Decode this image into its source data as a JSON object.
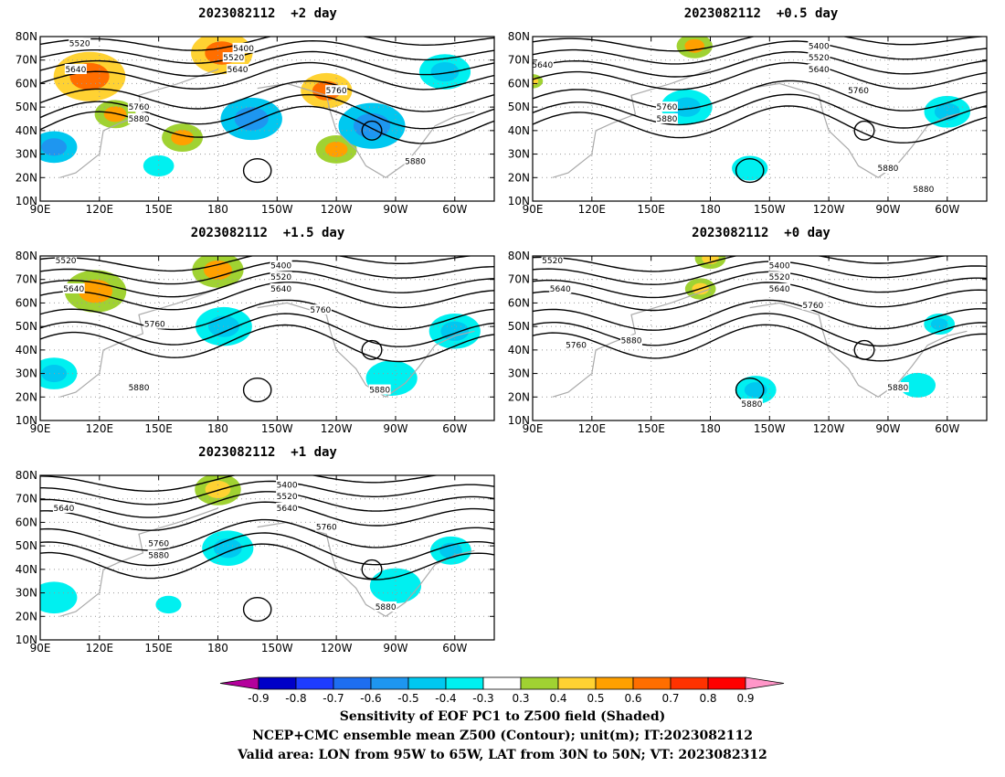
{
  "lon_ticks": [
    "90E",
    "120E",
    "150E",
    "180",
    "150W",
    "120W",
    "90W",
    "60W"
  ],
  "lat_ticks": [
    "80N",
    "70N",
    "60N",
    "50N",
    "40N",
    "30N",
    "20N",
    "10N"
  ],
  "panels": [
    {
      "id": "p2",
      "title": "2023082112  +2 day",
      "contour_labels": [
        {
          "t": "5520",
          "lon": 110,
          "lat": 77
        },
        {
          "t": "5400",
          "lon": 193,
          "lat": 75
        },
        {
          "t": "5520",
          "lon": 188,
          "lat": 71
        },
        {
          "t": "5640",
          "lon": 108,
          "lat": 66
        },
        {
          "t": "5640",
          "lon": 190,
          "lat": 66
        },
        {
          "t": "5760",
          "lon": 140,
          "lat": 50
        },
        {
          "t": "5880",
          "lon": 140,
          "lat": 45
        },
        {
          "t": "5760",
          "lon": 240,
          "lat": 57
        },
        {
          "t": "5880",
          "lon": 280,
          "lat": 27
        }
      ],
      "blobs": [
        {
          "lon": 115,
          "lat": 63,
          "r": 14,
          "v": 0.6
        },
        {
          "lon": 182,
          "lat": 73,
          "r": 12,
          "v": 0.6
        },
        {
          "lon": 235,
          "lat": 57,
          "r": 10,
          "v": 0.6
        },
        {
          "lon": 240,
          "lat": 32,
          "r": 8,
          "v": 0.5
        },
        {
          "lon": 97,
          "lat": 33,
          "r": 9,
          "v": -0.6
        },
        {
          "lon": 197,
          "lat": 45,
          "r": 12,
          "v": -0.6
        },
        {
          "lon": 258,
          "lat": 42,
          "r": 13,
          "v": -0.6
        },
        {
          "lon": 295,
          "lat": 65,
          "r": 10,
          "v": -0.5
        },
        {
          "lon": 128,
          "lat": 47,
          "r": 8,
          "v": 0.5
        },
        {
          "lon": 162,
          "lat": 37,
          "r": 8,
          "v": 0.5
        },
        {
          "lon": 150,
          "lat": 25,
          "r": 6,
          "v": -0.4
        }
      ]
    },
    {
      "id": "p05",
      "title": "2023082112  +0.5 day",
      "contour_labels": [
        {
          "t": "5400",
          "lon": 235,
          "lat": 76
        },
        {
          "t": "5520",
          "lon": 235,
          "lat": 71
        },
        {
          "t": "5640",
          "lon": 95,
          "lat": 68
        },
        {
          "t": "5640",
          "lon": 235,
          "lat": 66
        },
        {
          "t": "5760",
          "lon": 158,
          "lat": 50
        },
        {
          "t": "5880",
          "lon": 158,
          "lat": 45
        },
        {
          "t": "5760",
          "lon": 255,
          "lat": 57
        },
        {
          "t": "5880",
          "lon": 270,
          "lat": 24
        },
        {
          "t": "5880",
          "lon": 288,
          "lat": 15
        }
      ],
      "blobs": [
        {
          "lon": 168,
          "lat": 50,
          "r": 10,
          "v": -0.5
        },
        {
          "lon": 300,
          "lat": 48,
          "r": 9,
          "v": -0.5
        },
        {
          "lon": 200,
          "lat": 24,
          "r": 7,
          "v": -0.4
        },
        {
          "lon": 172,
          "lat": 76,
          "r": 7,
          "v": 0.5
        },
        {
          "lon": 90,
          "lat": 61,
          "r": 4,
          "v": 0.4
        }
      ]
    },
    {
      "id": "p15",
      "title": "2023082112  +1.5 day",
      "contour_labels": [
        {
          "t": "5520",
          "lon": 103,
          "lat": 78
        },
        {
          "t": "5400",
          "lon": 212,
          "lat": 76
        },
        {
          "t": "5520",
          "lon": 212,
          "lat": 71
        },
        {
          "t": "5640",
          "lon": 107,
          "lat": 66
        },
        {
          "t": "5640",
          "lon": 212,
          "lat": 66
        },
        {
          "t": "5760",
          "lon": 148,
          "lat": 51
        },
        {
          "t": "5760",
          "lon": 232,
          "lat": 57
        },
        {
          "t": "5880",
          "lon": 140,
          "lat": 24
        },
        {
          "t": "5880",
          "lon": 262,
          "lat": 23
        }
      ],
      "blobs": [
        {
          "lon": 180,
          "lat": 74,
          "r": 10,
          "v": 0.5
        },
        {
          "lon": 118,
          "lat": 65,
          "r": 12,
          "v": 0.5
        },
        {
          "lon": 183,
          "lat": 50,
          "r": 11,
          "v": -0.5
        },
        {
          "lon": 97,
          "lat": 30,
          "r": 9,
          "v": -0.5
        },
        {
          "lon": 300,
          "lat": 48,
          "r": 10,
          "v": -0.5
        },
        {
          "lon": 268,
          "lat": 28,
          "r": 10,
          "v": -0.4
        }
      ]
    },
    {
      "id": "p0",
      "title": "2023082112  +0 day",
      "contour_labels": [
        {
          "t": "5520",
          "lon": 100,
          "lat": 78
        },
        {
          "t": "5400",
          "lon": 215,
          "lat": 76
        },
        {
          "t": "5520",
          "lon": 215,
          "lat": 71
        },
        {
          "t": "5640",
          "lon": 104,
          "lat": 66
        },
        {
          "t": "5640",
          "lon": 215,
          "lat": 66
        },
        {
          "t": "5760",
          "lon": 112,
          "lat": 42
        },
        {
          "t": "5880",
          "lon": 140,
          "lat": 44
        },
        {
          "t": "5760",
          "lon": 232,
          "lat": 59
        },
        {
          "t": "5880",
          "lon": 201,
          "lat": 17
        },
        {
          "t": "5880",
          "lon": 275,
          "lat": 24
        }
      ],
      "blobs": [
        {
          "lon": 203,
          "lat": 23,
          "r": 8,
          "v": -0.5
        },
        {
          "lon": 296,
          "lat": 51,
          "r": 6,
          "v": -0.5
        },
        {
          "lon": 285,
          "lat": 25,
          "r": 7,
          "v": -0.4
        },
        {
          "lon": 175,
          "lat": 66,
          "r": 6,
          "v": 0.4
        },
        {
          "lon": 180,
          "lat": 79,
          "r": 6,
          "v": 0.4
        }
      ]
    },
    {
      "id": "p1",
      "title": "2023082112  +1 day",
      "contour_labels": [
        {
          "t": "5400",
          "lon": 215,
          "lat": 76
        },
        {
          "t": "5520",
          "lon": 215,
          "lat": 71
        },
        {
          "t": "5640",
          "lon": 102,
          "lat": 66
        },
        {
          "t": "5640",
          "lon": 215,
          "lat": 66
        },
        {
          "t": "5760",
          "lon": 150,
          "lat": 51
        },
        {
          "t": "5880",
          "lon": 150,
          "lat": 46
        },
        {
          "t": "5760",
          "lon": 235,
          "lat": 58
        },
        {
          "t": "5880",
          "lon": 265,
          "lat": 24
        }
      ],
      "blobs": [
        {
          "lon": 180,
          "lat": 74,
          "r": 9,
          "v": 0.4
        },
        {
          "lon": 185,
          "lat": 49,
          "r": 10,
          "v": -0.5
        },
        {
          "lon": 97,
          "lat": 28,
          "r": 9,
          "v": -0.4
        },
        {
          "lon": 298,
          "lat": 48,
          "r": 8,
          "v": -0.5
        },
        {
          "lon": 270,
          "lat": 33,
          "r": 10,
          "v": -0.4
        },
        {
          "lon": 155,
          "lat": 25,
          "r": 5,
          "v": -0.4
        }
      ]
    }
  ],
  "colorbar": {
    "tick_labels": [
      "-0.9",
      "-0.8",
      "-0.7",
      "-0.6",
      "-0.5",
      "-0.4",
      "-0.3",
      "0.3",
      "0.4",
      "0.5",
      "0.6",
      "0.7",
      "0.8",
      "0.9"
    ],
    "colors": [
      "#b4009c",
      "#0000c8",
      "#1e3cff",
      "#1e6ef0",
      "#1e96f0",
      "#00c8f0",
      "#00f0f0",
      "#ffffff",
      "#a0d232",
      "#ffd232",
      "#ffa000",
      "#ff6e00",
      "#ff3200",
      "#ff0000",
      "#ff96c8"
    ]
  },
  "footer": {
    "line1": "Sensitivity of EOF PC1 to Z500 field (Shaded)",
    "line2": "NCEP+CMC ensemble mean Z500 (Contour); unit(m); IT:2023082112",
    "line3": "Valid area: LON from 95W to 65W, LAT from 30N to 50N; VT: 2023082312"
  }
}
